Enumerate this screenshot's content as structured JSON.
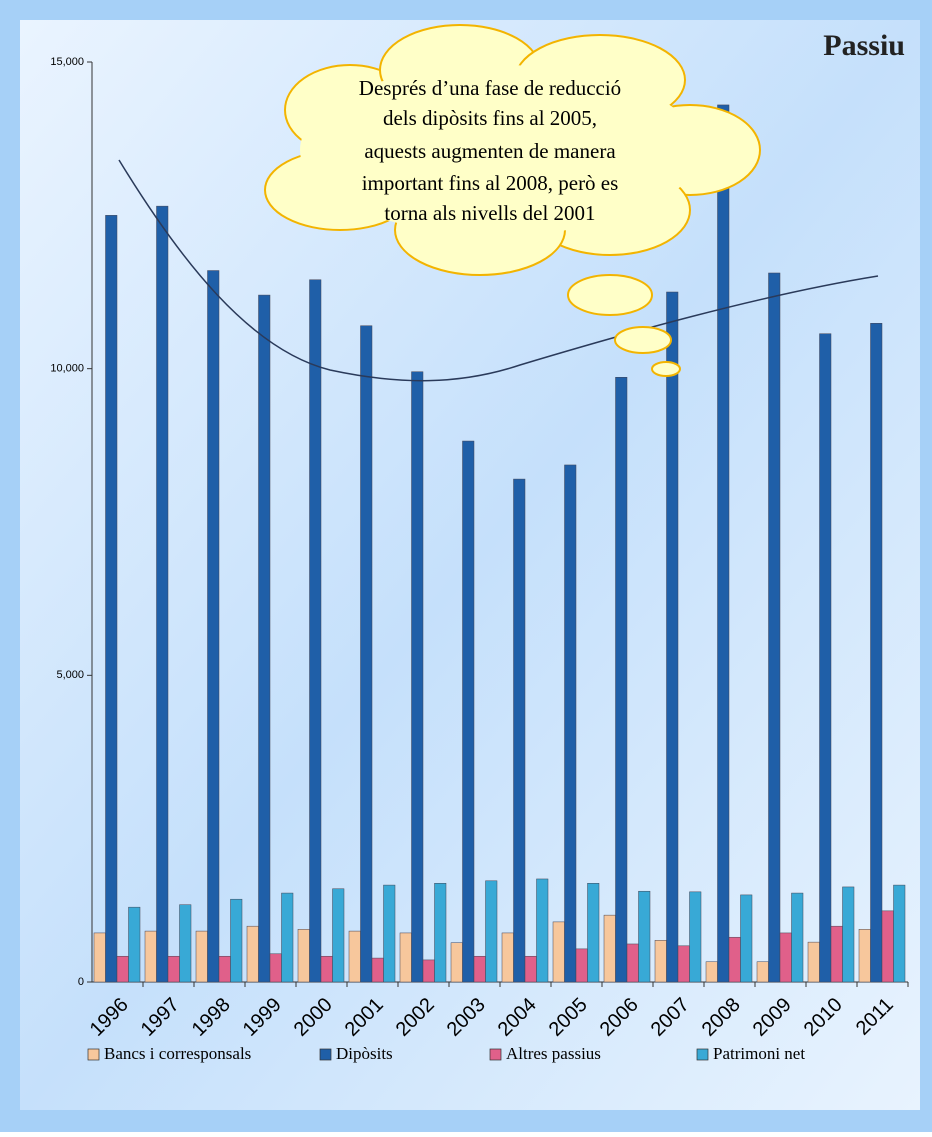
{
  "chart_data": {
    "type": "bar",
    "title": "Passiu",
    "annotation": [
      "Després d’una fase de reducció",
      "dels dipòsits fins al 2005,",
      "aquests augmenten de manera",
      "important fins al 2008, però es",
      "torna als nivells del 2001"
    ],
    "categories": [
      "1996",
      "1997",
      "1998",
      "1999",
      "2000",
      "2001",
      "2002",
      "2003",
      "2004",
      "2005",
      "2006",
      "2007",
      "2008",
      "2009",
      "2010",
      "2011"
    ],
    "series": [
      {
        "name": "Bancs i corresponsals",
        "color": "#f7c79c",
        "values": [
          800,
          830,
          830,
          910,
          860,
          830,
          800,
          640,
          800,
          980,
          1090,
          680,
          330,
          330,
          650,
          860
        ]
      },
      {
        "name": "Dipòsits",
        "color": "#1f5fa8",
        "values": [
          12500,
          12650,
          11600,
          11200,
          11450,
          10700,
          9950,
          8820,
          8200,
          8430,
          9860,
          11250,
          14300,
          11560,
          10570,
          10740
        ]
      },
      {
        "name": "Altres passius",
        "color": "#e0608a",
        "values": [
          420,
          420,
          420,
          460,
          420,
          390,
          360,
          420,
          420,
          540,
          620,
          590,
          730,
          800,
          910,
          1160
        ]
      },
      {
        "name": "Patrimoni net",
        "color": "#38a9d6",
        "values": [
          1220,
          1260,
          1350,
          1450,
          1520,
          1580,
          1610,
          1650,
          1680,
          1610,
          1480,
          1470,
          1420,
          1450,
          1550,
          1580
        ]
      }
    ],
    "ylim": [
      0,
      15000
    ],
    "yticks": [
      0,
      {
        "value": 5000,
        "label": "5,000"
      },
      {
        "value": 10000,
        "label": "10,000"
      },
      {
        "value": 15000,
        "label": "15,000"
      }
    ]
  }
}
